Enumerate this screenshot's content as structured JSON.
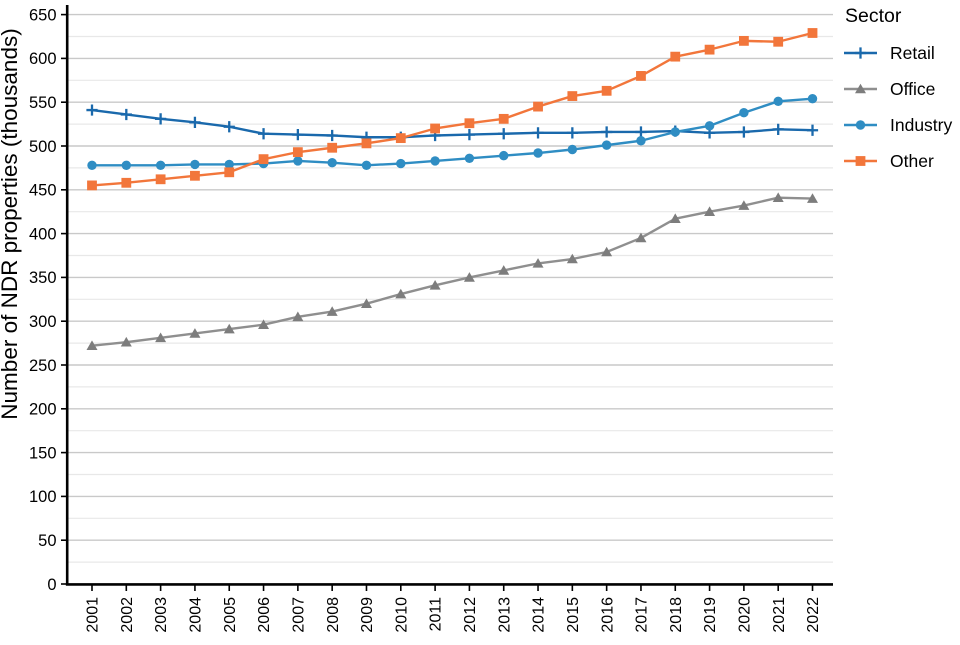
{
  "chart_data": {
    "type": "line",
    "title": "",
    "ylabel": "Number of NDR properties (thousands)",
    "xlabel": "",
    "legend_title": "Sector",
    "legend_position": "right",
    "grid": "horizontal gridlines, minor every 25, major every 50",
    "ylim": [
      0,
      650
    ],
    "ytick_step": 50,
    "categories": [
      "2001",
      "2002",
      "2003",
      "2004",
      "2005",
      "2006",
      "2007",
      "2008",
      "2009",
      "2010",
      "2011",
      "2012",
      "2013",
      "2014",
      "2015",
      "2016",
      "2017",
      "2018",
      "2019",
      "2020",
      "2021",
      "2022"
    ],
    "series": [
      {
        "name": "Retail",
        "marker": "plus",
        "color": "#1a69ac",
        "marker_color": "#1a69ac",
        "values": [
          541,
          536,
          531,
          527,
          522,
          514,
          513,
          512,
          510,
          510,
          512,
          513,
          514,
          515,
          515,
          516,
          516,
          517,
          515,
          516,
          519,
          518
        ]
      },
      {
        "name": "Office",
        "marker": "triangle",
        "color": "#8f8f8f",
        "marker_color": "#7d7d7d",
        "values": [
          272,
          276,
          281,
          286,
          291,
          296,
          305,
          311,
          320,
          331,
          341,
          350,
          358,
          366,
          371,
          379,
          395,
          417,
          425,
          432,
          441,
          440
        ]
      },
      {
        "name": "Industry",
        "marker": "circle",
        "color": "#2f8dc3",
        "marker_color": "#2f8dc3",
        "values": [
          478,
          478,
          478,
          479,
          479,
          480,
          483,
          481,
          478,
          480,
          483,
          486,
          489,
          492,
          496,
          501,
          506,
          516,
          523,
          538,
          551,
          554
        ]
      },
      {
        "name": "Other",
        "marker": "square",
        "color": "#f2763b",
        "marker_color": "#f2763b",
        "values": [
          455,
          458,
          462,
          466,
          470,
          485,
          493,
          498,
          503,
          509,
          520,
          526,
          531,
          545,
          557,
          563,
          580,
          602,
          610,
          620,
          619,
          629
        ]
      }
    ]
  },
  "colors": {
    "axis": "#000000",
    "grid_minor": "#e8e8e8",
    "grid_major": "#c9c9c9",
    "text": "#000000"
  }
}
